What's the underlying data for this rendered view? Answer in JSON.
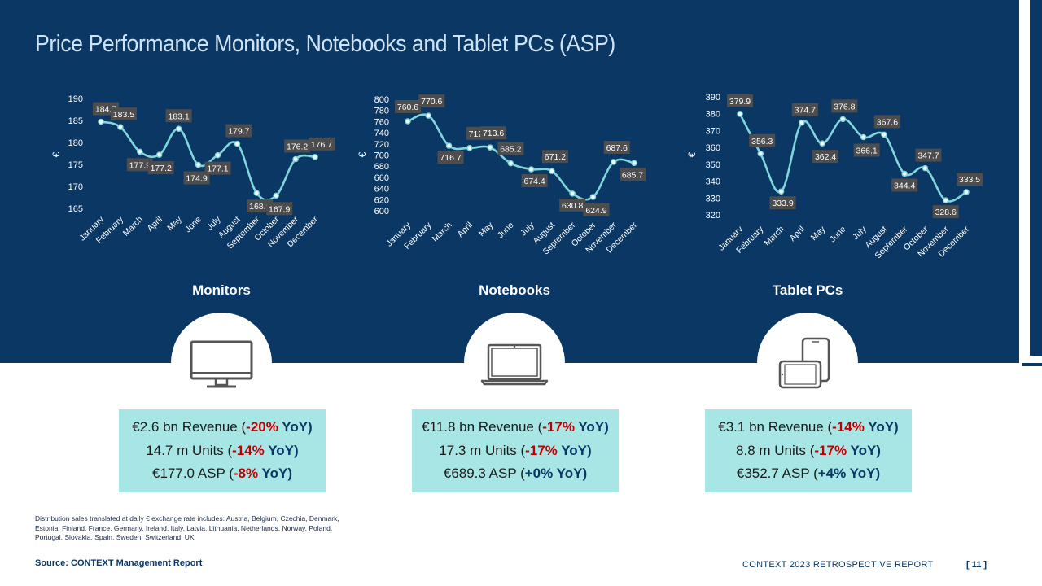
{
  "page": {
    "title": "Price Performance Monitors, Notebooks and Tablet PCs (ASP)",
    "footnote": "Distribution sales translated at daily € exchange rate includes: Austria, Belgium, Czechia, Denmark, Estonia, Finland, France, Germany, Ireland, Italy, Latvia, Lithuania, Netherlands, Norway, Poland, Portugal, Slovakia, Spain, Sweden, Switzerland, UK",
    "source": "Source: CONTEXT  Management Report",
    "report": "CONTEXT  2023 RETROSPECTIVE  REPORT",
    "page_number": "[ 11 ]"
  },
  "colors": {
    "navy": "#0a3763",
    "line": "#7fd6db",
    "label_bg": "#4d4d4d",
    "stat_box": "#a8e6e6",
    "negative": "#c00000"
  },
  "chart_data": [
    {
      "type": "line",
      "ylabel": "€",
      "ylim": [
        165,
        190
      ],
      "yticks": [
        165,
        170,
        175,
        180,
        185,
        190
      ],
      "categories": [
        "January",
        "February",
        "March",
        "April",
        "May",
        "June",
        "July",
        "August",
        "September",
        "October",
        "November",
        "December"
      ],
      "values": [
        184.7,
        183.5,
        177.9,
        177.2,
        183.1,
        174.9,
        177.1,
        179.7,
        168.5,
        167.9,
        176.2,
        176.7
      ],
      "data_labels": [
        "184.7",
        "183.5",
        "177.9",
        "177.2",
        "183.1",
        "174.9",
        "177.1",
        "179.7",
        "168.5",
        "167.9",
        "176.2",
        "176.7"
      ],
      "grid": false,
      "legend": "none"
    },
    {
      "type": "line",
      "ylabel": "€",
      "ylim": [
        600,
        800
      ],
      "yticks": [
        600,
        620,
        640,
        660,
        680,
        700,
        720,
        740,
        760,
        780,
        800
      ],
      "categories": [
        "January",
        "February",
        "March",
        "April",
        "May",
        "June",
        "July",
        "August",
        "September",
        "October",
        "November",
        "December"
      ],
      "values": [
        760.6,
        770.6,
        716.7,
        712.7,
        713.6,
        685.2,
        674.4,
        671.2,
        630.8,
        624.9,
        687.6,
        685.7
      ],
      "data_labels": [
        "760.6",
        "770.6",
        "716.7",
        "712.7",
        "713.6",
        "685.2",
        "674.4",
        "671.2",
        "630.8",
        "624.9",
        "687.6",
        "685.7"
      ],
      "grid": false,
      "legend": "none"
    },
    {
      "type": "line",
      "ylabel": "€",
      "ylim": [
        320,
        390
      ],
      "yticks": [
        320,
        330,
        340,
        350,
        360,
        370,
        380,
        390
      ],
      "categories": [
        "January",
        "February",
        "March",
        "April",
        "May",
        "June",
        "July",
        "August",
        "September",
        "October",
        "November",
        "December"
      ],
      "values": [
        379.9,
        356.3,
        333.9,
        374.7,
        362.4,
        376.8,
        366.1,
        367.6,
        344.4,
        347.7,
        328.6,
        333.5
      ],
      "data_labels": [
        "379.9",
        "356.3",
        "333.9",
        "374.7",
        "362.4",
        "376.8",
        "366.1",
        "367.6",
        "344.4",
        "347.7",
        "328.6",
        "333.5"
      ],
      "grid": false,
      "legend": "none"
    }
  ],
  "categories": [
    {
      "name": "Monitors",
      "icon": "monitor-icon",
      "revenue": {
        "prefix": "€2.6 bn Revenue (",
        "pct": "-20%",
        "suffix": " YoY)"
      },
      "units": {
        "prefix": "14.7 m Units (",
        "pct": "-14%",
        "suffix": " YoY)"
      },
      "asp": {
        "prefix": "€177.0 ASP (",
        "pct": "-8%",
        "suffix": " YoY)"
      }
    },
    {
      "name": "Notebooks",
      "icon": "laptop-icon",
      "revenue": {
        "prefix": "€11.8 bn Revenue (",
        "pct": "-17%",
        "suffix": " YoY)"
      },
      "units": {
        "prefix": "17.3 m Units (",
        "pct": "-17%",
        "suffix": " YoY)"
      },
      "asp": {
        "prefix": "€689.3 ASP (",
        "pct": "+0%",
        "suffix": " YoY)"
      }
    },
    {
      "name": "Tablet PCs",
      "icon": "tablet-icon",
      "revenue": {
        "prefix": "€3.1 bn Revenue (",
        "pct": "-14%",
        "suffix": " YoY)"
      },
      "units": {
        "prefix": "8.8 m Units (",
        "pct": "-17%",
        "suffix": " YoY)"
      },
      "asp": {
        "prefix": "€352.7 ASP (",
        "pct": "+4%",
        "suffix": " YoY)"
      }
    }
  ]
}
